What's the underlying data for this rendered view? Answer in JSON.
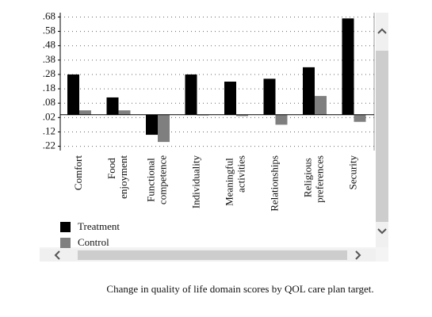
{
  "caption": "Change in quality of life domain scores by QOL care plan target.",
  "chart_data": {
    "type": "bar",
    "categories": [
      "Comfort",
      "Food enjoyment",
      "Functional competence",
      "Individuality",
      "Meaningful activities",
      "Relationships",
      "Religious preferences",
      "Security"
    ],
    "series": [
      {
        "name": "Treatment",
        "color": "#000000",
        "values": [
          0.28,
          0.12,
          -0.14,
          0.28,
          0.23,
          0.25,
          0.33,
          0.67
        ]
      },
      {
        "name": "Control",
        "color": "#7f7f7f",
        "values": [
          0.03,
          0.03,
          -0.19,
          0,
          -0.01,
          -0.07,
          0.13,
          -0.05
        ]
      }
    ],
    "ylim": [
      -0.25,
      0.71
    ],
    "yticks": [
      {
        "value": 0.68,
        "label": ".68"
      },
      {
        "value": 0.58,
        "label": ".58"
      },
      {
        "value": 0.48,
        "label": ".48"
      },
      {
        "value": 0.38,
        "label": ".38"
      },
      {
        "value": 0.28,
        "label": ".28"
      },
      {
        "value": 0.18,
        "label": ".18"
      },
      {
        "value": 0.08,
        "label": ".08"
      },
      {
        "value": -0.02,
        "label": ".02"
      },
      {
        "value": -0.12,
        "label": ".12"
      },
      {
        "value": -0.22,
        "label": ".22"
      }
    ],
    "grid": true,
    "legend": "bottom-left"
  }
}
